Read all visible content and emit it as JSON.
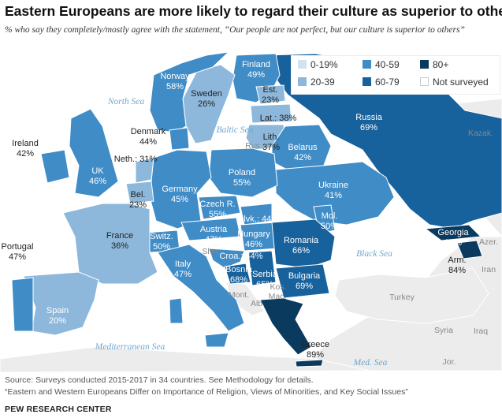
{
  "title": "Eastern Europeans are more likely to regard their culture as superior to others",
  "subtitle": "% who say they completely/mostly agree with the statement, “Our people are not perfect, but our culture is superior to others”",
  "legend": [
    {
      "label": "0-19%",
      "color": "#d3e2ee"
    },
    {
      "label": "40-59",
      "color": "#3f8cc7"
    },
    {
      "label": "80+",
      "color": "#0b3a5f"
    },
    {
      "label": "20-39",
      "color": "#8db8db"
    },
    {
      "label": "60-79",
      "color": "#17619c"
    },
    {
      "label": "Not surveyed",
      "color": "#ffffff"
    }
  ],
  "seas": {
    "north": "North Sea",
    "baltic": "Baltic Sea",
    "black": "Black Sea",
    "med": "Mediterranean Sea",
    "medsea2": "Med. Sea"
  },
  "countries": [
    {
      "name": "Finland",
      "value": "49%"
    },
    {
      "name": "Norway",
      "value": "58%"
    },
    {
      "name": "Sweden",
      "value": "26%"
    },
    {
      "name": "Est.",
      "value": "23%"
    },
    {
      "name": "Lat.:",
      "value": "38%"
    },
    {
      "name": "Lith.",
      "value": "37%"
    },
    {
      "name": "Russia",
      "value": "69%"
    },
    {
      "name": "Denmark",
      "value": "44%"
    },
    {
      "name": "Ireland",
      "value": "42%"
    },
    {
      "name": "UK",
      "value": "46%"
    },
    {
      "name": "Neth.:",
      "value": "31%"
    },
    {
      "name": "Bel.",
      "value": "23%"
    },
    {
      "name": "Belarus",
      "value": "42%"
    },
    {
      "name": "Poland",
      "value": "55%"
    },
    {
      "name": "Germany",
      "value": "45%"
    },
    {
      "name": "Czech R.",
      "value": "55%"
    },
    {
      "name": "Slvk.:",
      "value": "44%"
    },
    {
      "name": "Ukraine",
      "value": "41%"
    },
    {
      "name": "Mol.",
      "value": "50%"
    },
    {
      "name": "Austria",
      "value": "47%"
    },
    {
      "name": "Hungary",
      "value": "46%"
    },
    {
      "name": "Switz.",
      "value": "50%"
    },
    {
      "name": "France",
      "value": "36%"
    },
    {
      "name": "Romania",
      "value": "66%"
    },
    {
      "name": "Georgia",
      "value": "85%"
    },
    {
      "name": "Arm.",
      "value": "84%"
    },
    {
      "name": "Portugal",
      "value": "47%"
    },
    {
      "name": "Italy",
      "value": "47%"
    },
    {
      "name": "Croa.:",
      "value": "44%"
    },
    {
      "name": "Bosnia",
      "value": "68%"
    },
    {
      "name": "Serbia",
      "value": "65%"
    },
    {
      "name": "Bulgaria",
      "value": "69%"
    },
    {
      "name": "Spain",
      "value": "20%"
    },
    {
      "name": "Greece",
      "value": "89%"
    }
  ],
  "unsurveyed": [
    "Kazak.",
    "Azer.",
    "Iran",
    "Turkey",
    "Syria",
    "Iraq",
    "Jor.",
    "Rus.",
    "Mont.",
    "Alb.",
    "Kos.",
    "Mac.",
    "Slvn."
  ],
  "footer": {
    "source": "Source: Surveys conducted 2015-2017 in 34 countries. See Methodology for details.",
    "report": "“Eastern and Western Europeans Differ on Importance of Religion, Views of Minorities, and Key Social Issues”",
    "brand": "PEW RESEARCH CENTER"
  }
}
